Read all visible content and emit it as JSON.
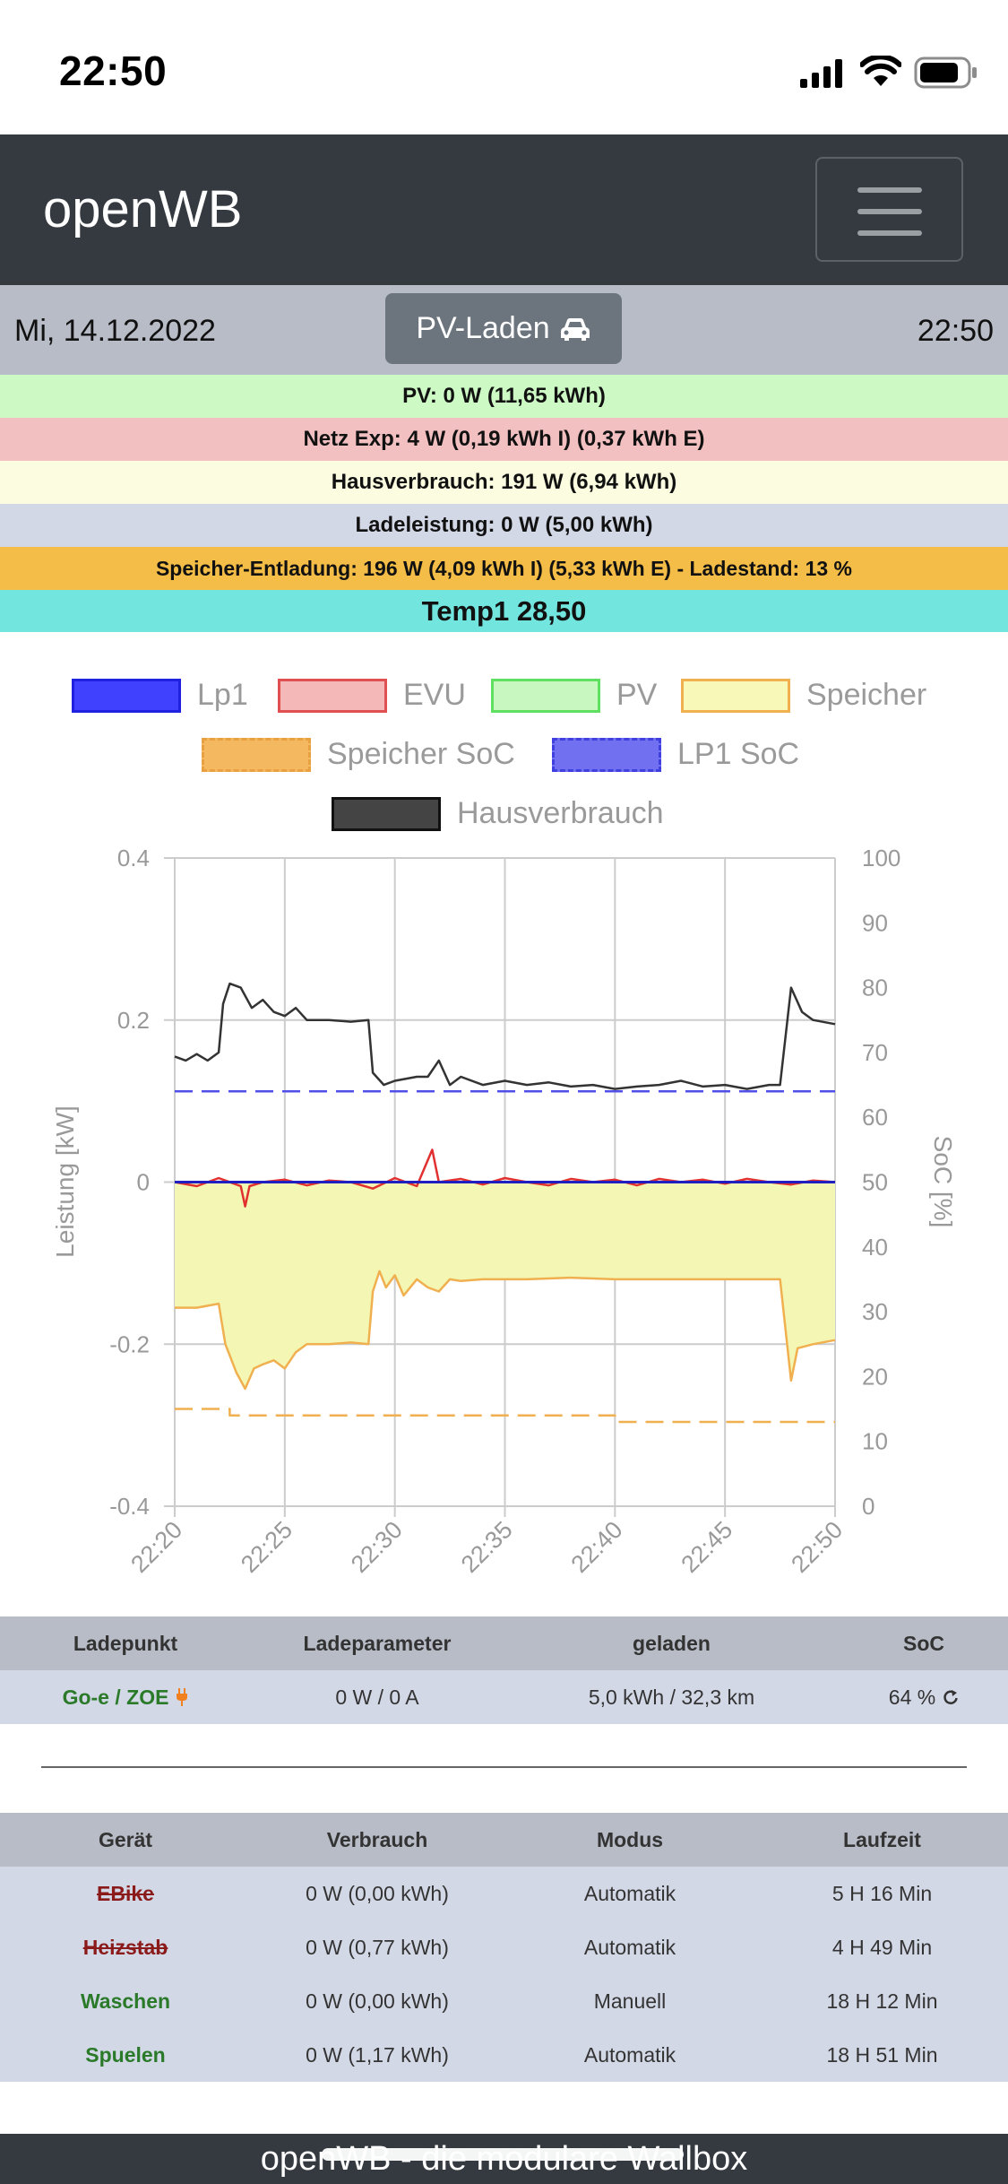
{
  "status": {
    "time": "22:50"
  },
  "navbar": {
    "brand": "openWB"
  },
  "daterow": {
    "date": "Mi, 14.12.2022",
    "mode_label": "PV-Laden",
    "time": "22:50"
  },
  "info": {
    "pv": "PV: 0 W (11,65 kWh)",
    "netz": "Netz Exp: 4 W (0,19 kWh I) (0,37 kWh E)",
    "haus": "Hausverbrauch: 191 W (6,94 kWh)",
    "lade": "Ladeleistung: 0 W (5,00 kWh)",
    "speicher": "Speicher-Entladung: 196 W (4,09 kWh I) (5,33 kWh E)  - Ladestand: 13 %",
    "temp": "Temp1 28,50"
  },
  "legend": [
    {
      "label": "Lp1",
      "fill": "#4040ff",
      "border": "#2020e0",
      "dashed": false
    },
    {
      "label": "EVU",
      "fill": "#f4b8b8",
      "border": "#e05050",
      "dashed": false
    },
    {
      "label": "PV",
      "fill": "#c8f7c0",
      "border": "#60e060",
      "dashed": false
    },
    {
      "label": "Speicher",
      "fill": "#f8f8b8",
      "border": "#f0b050",
      "dashed": false
    },
    {
      "label": "Speicher SoC",
      "fill": "#f4b860",
      "border": "#f4b860",
      "dashed": true
    },
    {
      "label": "LP1 SoC",
      "fill": "#7070f0",
      "border": "#4040e0",
      "dashed": true
    },
    {
      "label": "Hausverbrauch",
      "fill": "#444444",
      "border": "#111111",
      "dashed": false
    }
  ],
  "chart_data": {
    "type": "line",
    "ylabel": "Leistung [kW]",
    "y2label": "SoC [%]",
    "ylim": [
      -0.4,
      0.4
    ],
    "y_ticks": [
      "0.4",
      "0.2",
      "0",
      "-0.2",
      "-0.4"
    ],
    "y2lim": [
      0,
      100
    ],
    "y2_ticks": [
      "100",
      "90",
      "80",
      "70",
      "60",
      "50",
      "40",
      "30",
      "20",
      "10",
      "0"
    ],
    "x_ticks": [
      "22:20",
      "22:25",
      "22:30",
      "22:35",
      "22:40",
      "22:45",
      "22:50"
    ],
    "xlim_min": [
      0,
      30
    ],
    "grid": true,
    "series": [
      {
        "name": "Hausverbrauch",
        "color": "#333333",
        "x": [
          0,
          0.5,
          1,
          1.5,
          2,
          2.2,
          2.5,
          3,
          3.5,
          4,
          4.5,
          5,
          5.5,
          6,
          7,
          8,
          8.8,
          9,
          9.5,
          10,
          11,
          11.5,
          12,
          12.5,
          13,
          14,
          15,
          16,
          17,
          18,
          19,
          20,
          21,
          22,
          23,
          24,
          25,
          26,
          27,
          27.5,
          28,
          28.5,
          29,
          30
        ],
        "y": [
          0.155,
          0.15,
          0.158,
          0.15,
          0.16,
          0.22,
          0.245,
          0.24,
          0.215,
          0.225,
          0.21,
          0.205,
          0.215,
          0.2,
          0.2,
          0.198,
          0.2,
          0.135,
          0.12,
          0.125,
          0.13,
          0.13,
          0.15,
          0.12,
          0.13,
          0.12,
          0.125,
          0.12,
          0.123,
          0.118,
          0.12,
          0.115,
          0.118,
          0.12,
          0.125,
          0.118,
          0.12,
          0.115,
          0.12,
          0.12,
          0.24,
          0.21,
          0.2,
          0.195
        ]
      },
      {
        "name": "EVU",
        "color": "#e03030",
        "x": [
          0,
          1,
          2,
          3,
          3.2,
          3.4,
          4,
          5,
          6,
          7,
          8,
          9,
          10,
          11,
          11.7,
          12,
          13,
          14,
          15,
          16,
          17,
          18,
          19,
          20,
          21,
          22,
          23,
          24,
          25,
          26,
          27,
          28,
          29,
          30
        ],
        "y": [
          0,
          -0.005,
          0.005,
          -0.005,
          -0.03,
          -0.005,
          0,
          0.003,
          -0.004,
          0.002,
          0,
          -0.008,
          0.005,
          -0.005,
          0.04,
          0,
          0.004,
          -0.003,
          0.005,
          0,
          -0.004,
          0.004,
          0,
          0.003,
          -0.004,
          0.004,
          0,
          0.003,
          -0.002,
          0.004,
          0,
          -0.003,
          0.002,
          0
        ]
      },
      {
        "name": "Lp1",
        "color": "#2020c0",
        "x": [
          0,
          30
        ],
        "y": [
          0,
          0
        ]
      },
      {
        "name": "Speicher",
        "color": "#f0b050",
        "fill": "#f3f7b3",
        "x": [
          0,
          1,
          2,
          2.3,
          2.8,
          3.2,
          3.6,
          4,
          4.5,
          5,
          5.5,
          6,
          7,
          8,
          8.8,
          9,
          9.3,
          9.6,
          10,
          10.4,
          11,
          11.5,
          12,
          12.5,
          13,
          14,
          16,
          18,
          20,
          22,
          24,
          26,
          27,
          27.5,
          28,
          28.3,
          29,
          30
        ],
        "y": [
          -0.155,
          -0.155,
          -0.15,
          -0.2,
          -0.235,
          -0.255,
          -0.23,
          -0.225,
          -0.22,
          -0.23,
          -0.21,
          -0.2,
          -0.2,
          -0.198,
          -0.2,
          -0.135,
          -0.11,
          -0.13,
          -0.115,
          -0.14,
          -0.12,
          -0.13,
          -0.135,
          -0.12,
          -0.122,
          -0.12,
          -0.12,
          -0.118,
          -0.12,
          -0.12,
          -0.12,
          -0.12,
          -0.12,
          -0.12,
          -0.245,
          -0.205,
          -0.2,
          -0.195
        ]
      },
      {
        "name": "LP1 SoC",
        "color": "#5050e8",
        "dashed": true,
        "axis": "y2",
        "x": [
          0,
          30
        ],
        "y": [
          64,
          64
        ]
      },
      {
        "name": "Speicher SoC",
        "color": "#f0b050",
        "dashed": true,
        "axis": "y2",
        "x": [
          0,
          2.5,
          2.5,
          20,
          20,
          30
        ],
        "y": [
          15,
          15,
          14,
          14,
          13,
          13
        ]
      }
    ]
  },
  "ladepunkt_table": {
    "headers": [
      "Ladepunkt",
      "Ladeparameter",
      "geladen",
      "SoC"
    ],
    "rows": [
      {
        "name": "Go-e / ZOE",
        "param": "0 W / 0 A",
        "geladen": "5,0 kWh / 32,3 km",
        "soc": "64 %"
      }
    ]
  },
  "geraete_table": {
    "headers": [
      "Gerät",
      "Verbrauch",
      "Modus",
      "Laufzeit"
    ],
    "rows": [
      {
        "name": "EBike",
        "verbrauch": "0 W (0,00 kWh)",
        "modus": "Automatik",
        "laufzeit": "5 H 16 Min",
        "active": false
      },
      {
        "name": "Heizstab",
        "verbrauch": "0 W (0,77 kWh)",
        "modus": "Automatik",
        "laufzeit": "4 H 49 Min",
        "active": false
      },
      {
        "name": "Waschen",
        "verbrauch": "0 W (0,00 kWh)",
        "modus": "Manuell",
        "laufzeit": "18 H 12 Min",
        "active": true
      },
      {
        "name": "Spuelen",
        "verbrauch": "0 W (1,17 kWh)",
        "modus": "Automatik",
        "laufzeit": "18 H 51 Min",
        "active": true
      }
    ]
  },
  "footer": {
    "text": "openWB - die modulare Wallbox"
  }
}
